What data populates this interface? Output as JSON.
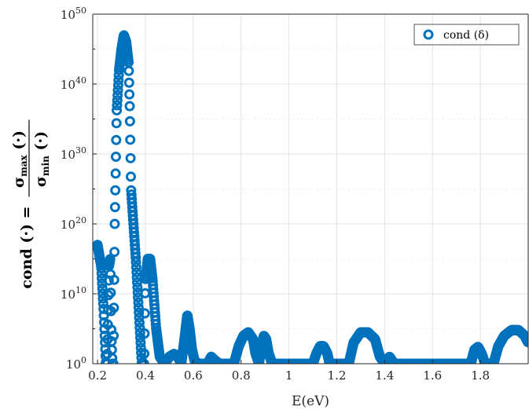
{
  "chart_data": {
    "type": "scatter",
    "xlabel": "E(eV)",
    "ylabel": {
      "prefix": "cond",
      "arg": "(·) =",
      "numerator": "σ",
      "numerator_sub": "max",
      "numerator_arg": "(·)",
      "denominator": "σ",
      "denominator_sub": "min",
      "denominator_arg": "(·)"
    },
    "xlim": [
      0.18,
      2.0
    ],
    "ylim_exponent": [
      0,
      50
    ],
    "yscale": "log",
    "grid": true,
    "legend_position": "top-right",
    "x_ticks": [
      0.2,
      0.4,
      0.6,
      0.8,
      1.0,
      1.2,
      1.4,
      1.6,
      1.8
    ],
    "x_tick_labels": [
      "0.2",
      "0.4",
      "0.6",
      "0.8",
      "1",
      "1.2",
      "1.4",
      "1.6",
      "1.8"
    ],
    "y_ticks": [
      {
        "base": "10",
        "exp": "0",
        "value": 0
      },
      {
        "base": "10",
        "exp": "10",
        "value": 10
      },
      {
        "base": "10",
        "exp": "20",
        "value": 20
      },
      {
        "base": "10",
        "exp": "30",
        "value": 30
      },
      {
        "base": "10",
        "exp": "40",
        "value": 40
      },
      {
        "base": "10",
        "exp": "50",
        "value": 50
      }
    ],
    "series": [
      {
        "name": "cond (δ)",
        "color": "#0072bd",
        "marker": "circle-open",
        "log10_y_profile": [
          [
            0.2,
            17
          ],
          [
            0.215,
            14
          ],
          [
            0.225,
            8
          ],
          [
            0.235,
            0
          ],
          [
            0.24,
            0
          ],
          [
            0.248,
            14
          ],
          [
            0.253,
            15
          ],
          [
            0.258,
            4
          ],
          [
            0.262,
            0
          ],
          [
            0.266,
            0
          ],
          [
            0.272,
            20
          ],
          [
            0.28,
            36
          ],
          [
            0.29,
            42
          ],
          [
            0.3,
            45
          ],
          [
            0.31,
            47
          ],
          [
            0.32,
            46
          ],
          [
            0.33,
            43
          ],
          [
            0.335,
            36
          ],
          [
            0.34,
            25
          ],
          [
            0.36,
            15
          ],
          [
            0.375,
            6
          ],
          [
            0.385,
            0
          ],
          [
            0.395,
            0
          ],
          [
            0.4,
            12
          ],
          [
            0.41,
            15
          ],
          [
            0.42,
            15
          ],
          [
            0.43,
            12
          ],
          [
            0.445,
            5
          ],
          [
            0.46,
            1
          ],
          [
            0.48,
            0
          ],
          [
            0.5,
            1
          ],
          [
            0.52,
            1.4
          ],
          [
            0.535,
            1
          ],
          [
            0.55,
            0
          ],
          [
            0.565,
            4
          ],
          [
            0.575,
            7
          ],
          [
            0.585,
            5
          ],
          [
            0.595,
            2
          ],
          [
            0.605,
            0.5
          ],
          [
            0.62,
            0
          ],
          [
            0.66,
            0
          ],
          [
            0.675,
            1
          ],
          [
            0.69,
            0.5
          ],
          [
            0.71,
            0
          ],
          [
            0.77,
            0
          ],
          [
            0.79,
            2.5
          ],
          [
            0.81,
            4
          ],
          [
            0.83,
            4.5
          ],
          [
            0.85,
            3.5
          ],
          [
            0.86,
            1.5
          ],
          [
            0.875,
            0
          ],
          [
            0.885,
            2.5
          ],
          [
            0.895,
            4
          ],
          [
            0.905,
            3.5
          ],
          [
            0.915,
            1.5
          ],
          [
            0.93,
            0
          ],
          [
            1.1,
            0
          ],
          [
            1.115,
            1.5
          ],
          [
            1.13,
            2.5
          ],
          [
            1.145,
            2.5
          ],
          [
            1.16,
            1.5
          ],
          [
            1.17,
            0
          ],
          [
            1.25,
            0
          ],
          [
            1.27,
            3
          ],
          [
            1.3,
            4.5
          ],
          [
            1.33,
            4.5
          ],
          [
            1.36,
            3.5
          ],
          [
            1.38,
            1
          ],
          [
            1.4,
            0
          ],
          [
            1.42,
            1
          ],
          [
            1.44,
            0
          ],
          [
            1.76,
            0
          ],
          [
            1.775,
            2
          ],
          [
            1.79,
            2.4
          ],
          [
            1.805,
            1.5
          ],
          [
            1.82,
            0
          ],
          [
            1.855,
            0
          ],
          [
            1.875,
            2.5
          ],
          [
            1.9,
            4
          ],
          [
            1.93,
            4.8
          ],
          [
            1.96,
            4.8
          ],
          [
            1.985,
            4
          ],
          [
            2.0,
            3
          ]
        ]
      }
    ]
  }
}
